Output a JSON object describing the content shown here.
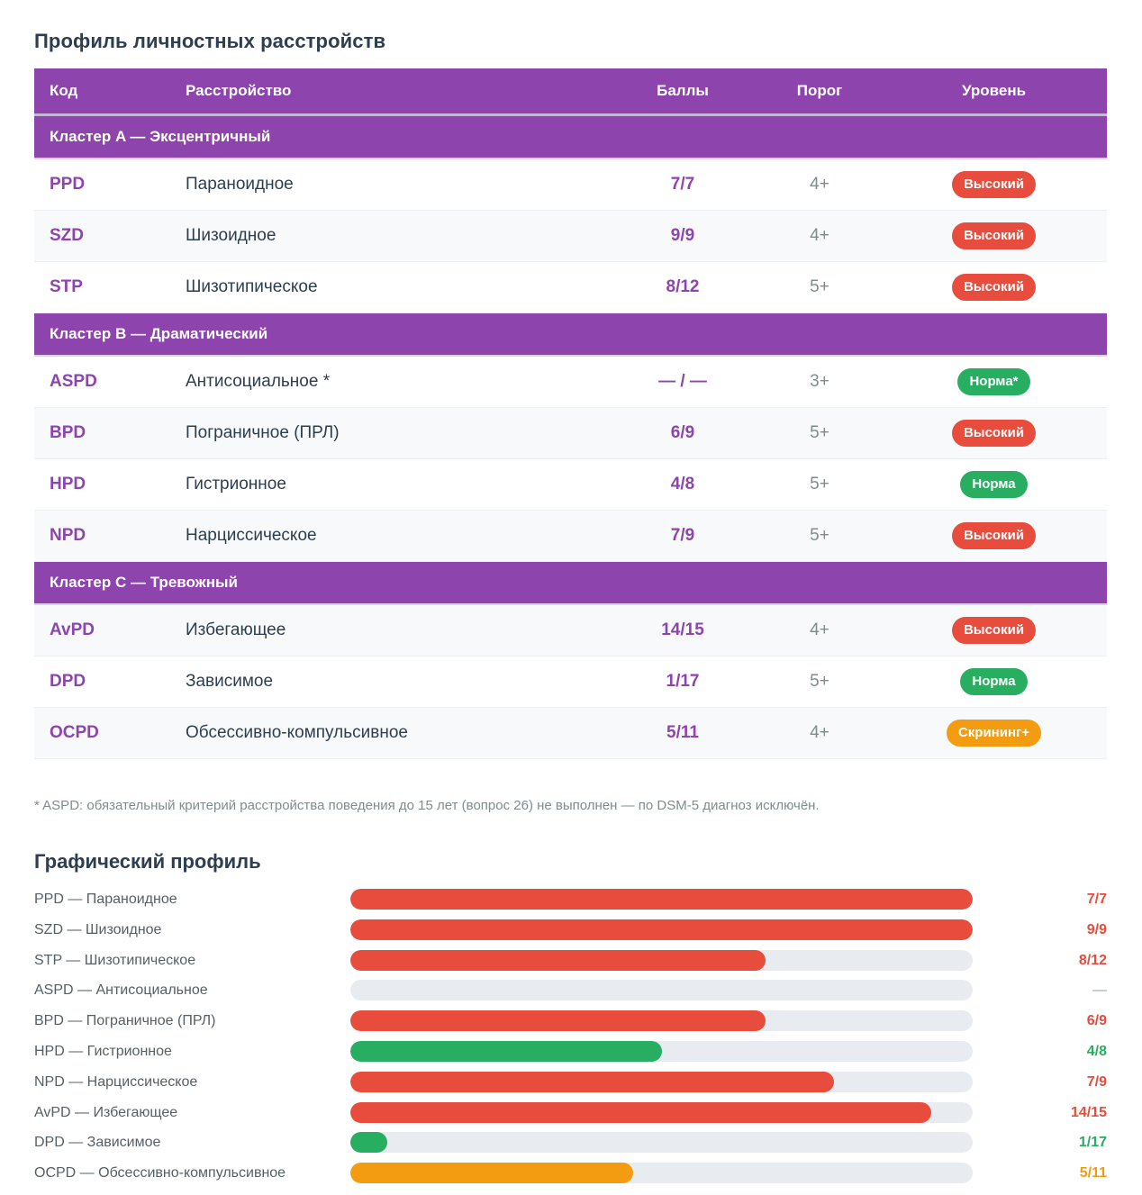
{
  "title": "Профиль личностных расстройств",
  "colors": {
    "accent": "#8e44ad",
    "high": "#e74c3c",
    "normal": "#27ae60",
    "screening": "#f39c12",
    "na": "#95a5a6",
    "track": "#e8ecf0"
  },
  "table": {
    "headers": {
      "code": "Код",
      "disorder": "Расстройство",
      "score": "Баллы",
      "threshold": "Порог",
      "level": "Уровень"
    },
    "clusters": [
      {
        "label": "Кластер A — Эксцентричный",
        "rows": [
          {
            "code": "PPD",
            "name": "Параноидное",
            "score": "7/7",
            "threshold": "4+",
            "level": "Высокий",
            "level_type": "high",
            "shade": "plain"
          },
          {
            "code": "SZD",
            "name": "Шизоидное",
            "score": "9/9",
            "threshold": "4+",
            "level": "Высокий",
            "level_type": "high",
            "shade": "alt"
          },
          {
            "code": "STP",
            "name": "Шизотипическое",
            "score": "8/12",
            "threshold": "5+",
            "level": "Высокий",
            "level_type": "high",
            "shade": "plain"
          }
        ]
      },
      {
        "label": "Кластер B — Драматический",
        "rows": [
          {
            "code": "ASPD",
            "name": "Антисоциальное *",
            "score": "— / —",
            "threshold": "3+",
            "level": "Норма*",
            "level_type": "normal",
            "shade": "plain"
          },
          {
            "code": "BPD",
            "name": "Пограничное (ПРЛ)",
            "score": "6/9",
            "threshold": "5+",
            "level": "Высокий",
            "level_type": "high",
            "shade": "alt"
          },
          {
            "code": "HPD",
            "name": "Гистрионное",
            "score": "4/8",
            "threshold": "5+",
            "level": "Норма",
            "level_type": "normal",
            "shade": "plain"
          },
          {
            "code": "NPD",
            "name": "Нарциссическое",
            "score": "7/9",
            "threshold": "5+",
            "level": "Высокий",
            "level_type": "high",
            "shade": "alt"
          }
        ]
      },
      {
        "label": "Кластер C — Тревожный",
        "rows": [
          {
            "code": "AvPD",
            "name": "Избегающее",
            "score": "14/15",
            "threshold": "4+",
            "level": "Высокий",
            "level_type": "high",
            "shade": "alt"
          },
          {
            "code": "DPD",
            "name": "Зависимое",
            "score": "1/17",
            "threshold": "5+",
            "level": "Норма",
            "level_type": "normal",
            "shade": "plain"
          },
          {
            "code": "OCPD",
            "name": "Обсессивно-компульсивное",
            "score": "5/11",
            "threshold": "4+",
            "level": "Скрининг+",
            "level_type": "screening",
            "shade": "alt"
          }
        ]
      }
    ]
  },
  "footnote": "* ASPD: обязательный критерий расстройства поведения до 15 лет (вопрос 26) не выполнен — по DSM-5 диагноз исключён.",
  "chart_title": "Графический профиль",
  "chart_data": {
    "type": "bar",
    "orientation": "horizontal",
    "title": "Графический профиль",
    "xlim": [
      0,
      1
    ],
    "grid": false,
    "legend": "none",
    "categories": [
      "PPD — Параноидное",
      "SZD — Шизоидное",
      "STP — Шизотипическое",
      "ASPD — Антисоциальное",
      "BPD — Пограничное (ПРЛ)",
      "HPD — Гистрионное",
      "NPD — Нарциссическое",
      "AvPD — Избегающее",
      "DPD — Зависимое",
      "OCPD — Обсессивно-компульсивное"
    ],
    "scores": [
      7,
      9,
      8,
      null,
      6,
      4,
      7,
      14,
      1,
      5
    ],
    "max_scores": [
      7,
      9,
      12,
      null,
      9,
      8,
      9,
      15,
      17,
      11
    ],
    "value_labels": [
      "7/7",
      "9/9",
      "8/12",
      "—",
      "6/9",
      "4/8",
      "7/9",
      "14/15",
      "1/17",
      "5/11"
    ],
    "status": [
      "high",
      "high",
      "high",
      "na",
      "high",
      "normal",
      "high",
      "high",
      "normal",
      "screening"
    ]
  }
}
